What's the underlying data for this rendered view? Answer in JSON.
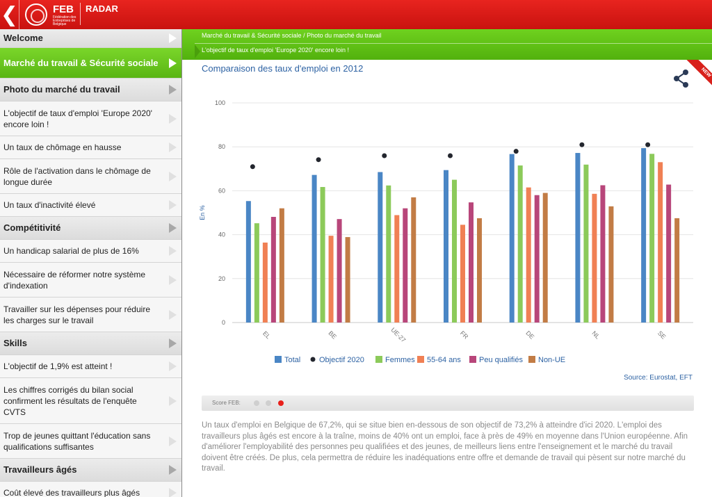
{
  "topbar": {
    "back_icon": "chevron-left-icon",
    "logo_text": "FEB",
    "logo_sub": "Fédération des Entreprises de Belgique",
    "app_title": "RADAR"
  },
  "sidebar": {
    "items": [
      {
        "label": "Welcome",
        "kind": "header"
      },
      {
        "label": "Marché du travail & Sécurité sociale",
        "kind": "active"
      },
      {
        "label": "Photo du marché du travail",
        "kind": "header"
      },
      {
        "label": "L'objectif de taux d'emploi 'Europe 2020' encore loin !",
        "kind": "sub"
      },
      {
        "label": "Un taux de chômage en hausse",
        "kind": "sub"
      },
      {
        "label": "Rôle de l'activation dans le chômage de longue durée",
        "kind": "sub"
      },
      {
        "label": "Un taux d'inactivité élevé",
        "kind": "sub"
      },
      {
        "label": "Compétitivité",
        "kind": "header"
      },
      {
        "label": "Un handicap salarial de plus de 16%",
        "kind": "sub"
      },
      {
        "label": "Nécessaire de réformer notre système d'indexation",
        "kind": "sub"
      },
      {
        "label": "Travailler sur les dépenses pour réduire les charges sur le travail",
        "kind": "sub"
      },
      {
        "label": "Skills",
        "kind": "header"
      },
      {
        "label": "L'objectif de 1,9% est atteint !",
        "kind": "sub"
      },
      {
        "label": "Les chiffres corrigés du bilan social confirment les résultats de l'enquête CVTS",
        "kind": "sub"
      },
      {
        "label": "Trop de jeunes quittant l'éducation sans qualifications suffisantes",
        "kind": "sub"
      },
      {
        "label": "Travailleurs âgés",
        "kind": "header"
      },
      {
        "label": "Coût élevé des travailleurs plus âgés",
        "kind": "sub"
      }
    ]
  },
  "breadcrumb": {
    "path": "Marché du travail & Sécurité sociale / Photo du marché du travail",
    "current": "L'objectif de taux d'emploi 'Europe 2020' encore loin !"
  },
  "badge": {
    "new": "NEW"
  },
  "share_icon": "share-icon",
  "chart_data": {
    "type": "bar",
    "title": "Comparaison des taux d'emploi en 2012",
    "ylabel": "En %",
    "xlabel": "",
    "ylim": [
      0,
      100
    ],
    "yticks": [
      0,
      20,
      40,
      60,
      80,
      100
    ],
    "categories": [
      "EL",
      "BE",
      "UE-27",
      "FR",
      "DE",
      "NL",
      "SE"
    ],
    "series": [
      {
        "name": "Total",
        "color": "#4a86c5",
        "values": [
          55.3,
          67.2,
          68.5,
          69.4,
          76.7,
          77.2,
          79.4
        ]
      },
      {
        "name": "Femmes",
        "color": "#8cca5a",
        "values": [
          45.2,
          61.7,
          62.4,
          65.0,
          71.5,
          71.9,
          76.8
        ]
      },
      {
        "name": "55-64 ans",
        "color": "#f08054",
        "values": [
          36.4,
          39.5,
          48.9,
          44.5,
          61.5,
          58.6,
          73.0
        ]
      },
      {
        "name": "Peu qualifiés",
        "color": "#b8467a",
        "values": [
          48.1,
          47.1,
          52.0,
          54.7,
          58.0,
          62.5,
          62.8
        ]
      },
      {
        "name": "Non-UE",
        "color": "#c27c45",
        "values": [
          52.0,
          38.9,
          57.0,
          47.5,
          59.0,
          52.9,
          47.5
        ]
      }
    ],
    "markers": {
      "name": "Objectif 2020",
      "color": "#23262e",
      "values": [
        70,
        73.2,
        75,
        75,
        77,
        80,
        80
      ]
    },
    "legend_position": "bottom",
    "grid": true,
    "source": "Source: Eurostat, EFT"
  },
  "score": {
    "label": "Score FEB:",
    "dots": [
      "grey",
      "grey",
      "red"
    ]
  },
  "body_text": "Un taux d'emploi en Belgique de 67,2%, qui se situe bien en-dessous de son objectif de 73,2% à atteindre d'ici 2020. L'emploi des travailleurs plus âgés est encore à la traîne, moins de 40% ont un emploi, face à près de 49% en moyenne dans l'Union européenne. Afin d'améliorer l'employabilité des personnes peu qualifiées et des jeunes, de meilleurs liens entre l'enseignement et le marché du travail doivent être créés. De plus, cela permettra de réduire les inadéquations entre offre et demande de travail qui pèsent sur notre marché du travail."
}
